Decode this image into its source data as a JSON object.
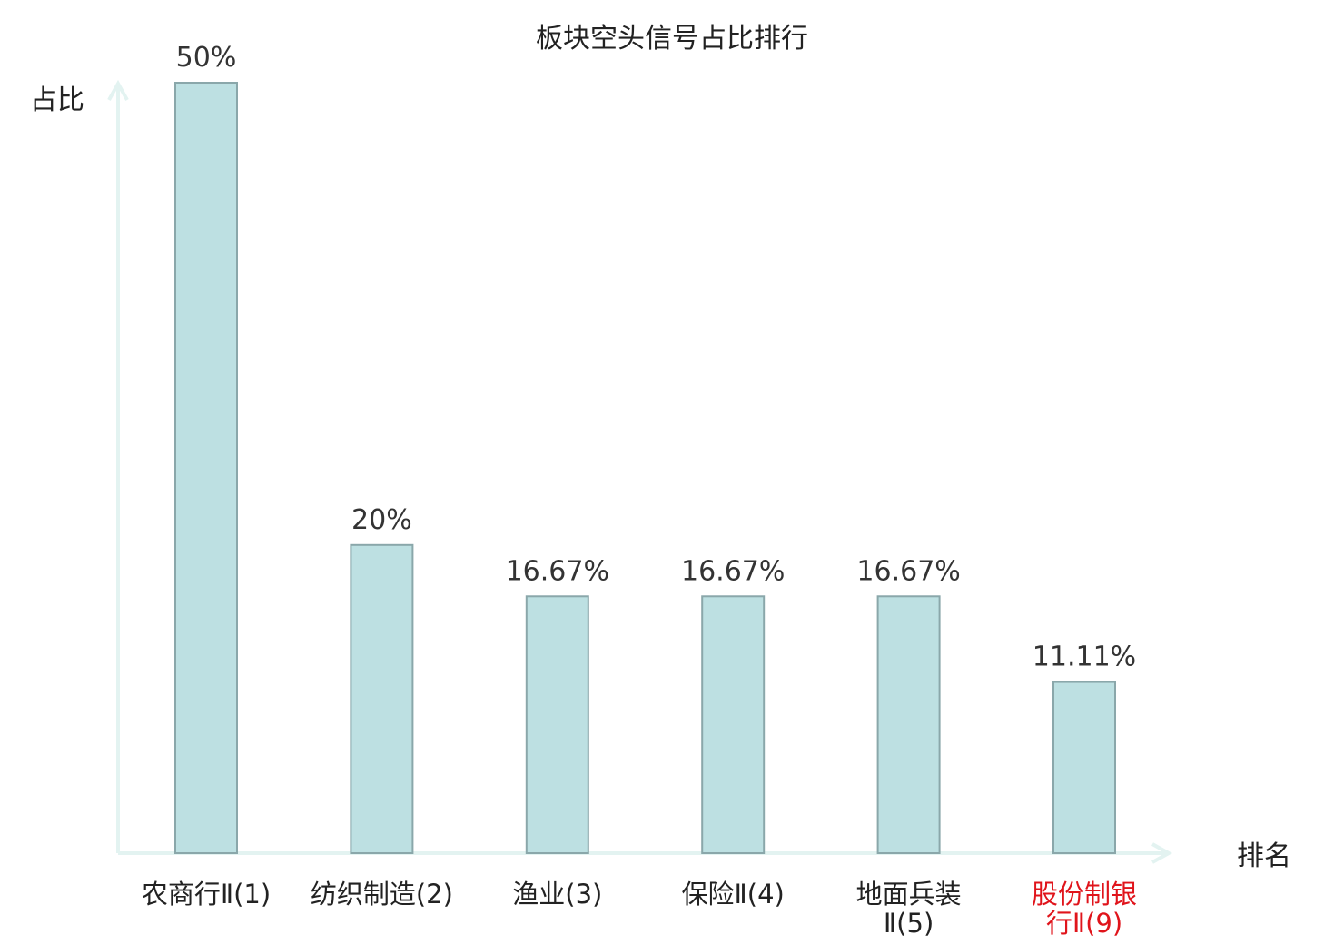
{
  "chart_data": {
    "type": "bar",
    "title": "板块空头信号占比排行",
    "ylabel": "占比",
    "xlabel": "排名",
    "ylim": [
      0,
      50
    ],
    "grid": false,
    "categories": [
      [
        "农商行Ⅱ(1)"
      ],
      [
        "纺织制造(2)"
      ],
      [
        "渔业(3)"
      ],
      [
        "保险Ⅱ(4)"
      ],
      [
        "地面兵装",
        "Ⅱ(5)"
      ],
      [
        "股份制银",
        "行Ⅱ(9)"
      ]
    ],
    "highlighted_category_index": 5,
    "values": [
      50,
      20,
      16.67,
      16.67,
      16.67,
      11.11
    ],
    "value_labels": [
      "50%",
      "20%",
      "16.67%",
      "16.67%",
      "16.67%",
      "11.11%"
    ],
    "colors": {
      "bar_fill": "#bde0e2",
      "bar_stroke": "#8aa7aa",
      "axis": "#e3f3f1",
      "text": "#222222",
      "value_label": "#333333",
      "highlight_label": "#e0141b"
    }
  }
}
